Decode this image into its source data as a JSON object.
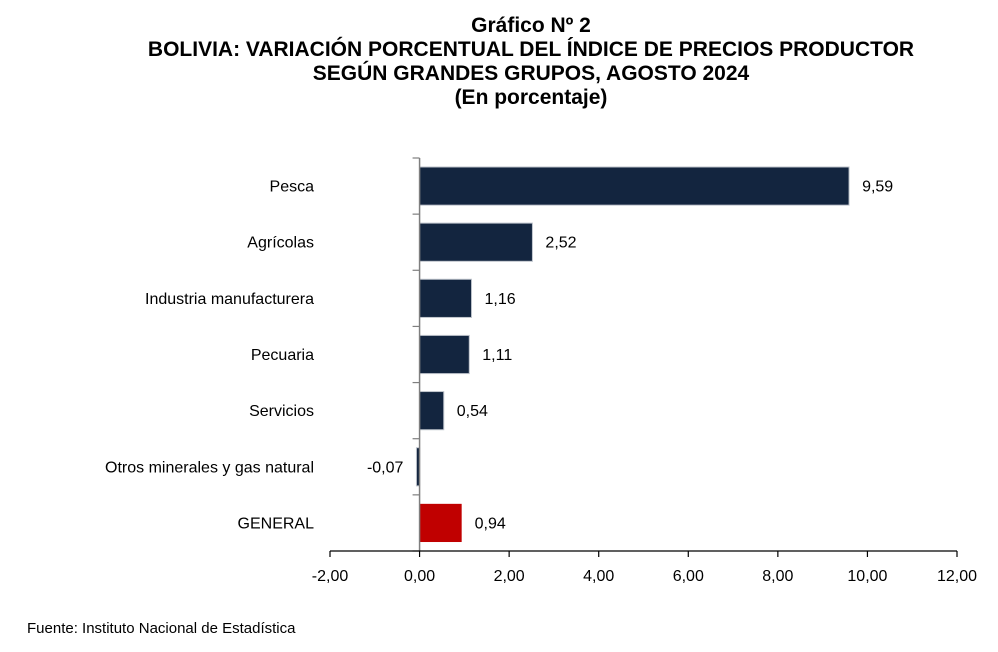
{
  "header": {
    "chart_number": "Gráfico Nº 2",
    "title_line1": "BOLIVIA: VARIACIÓN PORCENTUAL DEL ÍNDICE DE PRECIOS PRODUCTOR",
    "title_line2": "SEGÚN GRANDES GRUPOS, AGOSTO 2024",
    "subtitle": "(En porcentaje)"
  },
  "footer": {
    "source": "Fuente: Instituto Nacional de Estadística"
  },
  "colors": {
    "bar": "#13253F",
    "highlight": "#C00000",
    "bar_border": "#BFC4CC",
    "axis": "#7F7F7F",
    "xaxis": "#000000"
  },
  "chart_data": {
    "type": "bar",
    "orientation": "horizontal",
    "title": "Gráfico Nº 2 — BOLIVIA: VARIACIÓN PORCENTUAL DEL ÍNDICE DE PRECIOS PRODUCTOR SEGÚN GRANDES GRUPOS, AGOSTO 2024",
    "subtitle": "(En porcentaje)",
    "xlabel": "",
    "ylabel": "",
    "categories": [
      "Pesca",
      "Agrícolas",
      "Industria manufacturera",
      "Pecuaria",
      "Servicios",
      "Otros minerales y gas natural",
      "GENERAL"
    ],
    "values": [
      9.59,
      2.52,
      1.16,
      1.11,
      0.54,
      -0.07,
      0.94
    ],
    "data_labels": [
      "9,59",
      "2,52",
      "1,16",
      "1,11",
      "0,54",
      "-0,07",
      "0,94"
    ],
    "highlight_category": "GENERAL",
    "xlim": [
      -2,
      12
    ],
    "xticks": [
      -2,
      0,
      2,
      4,
      6,
      8,
      10,
      12
    ],
    "xtick_labels": [
      "-2,00",
      "0,00",
      "2,00",
      "4,00",
      "6,00",
      "8,00",
      "10,00",
      "12,00"
    ],
    "grid": false,
    "legend": "none"
  }
}
